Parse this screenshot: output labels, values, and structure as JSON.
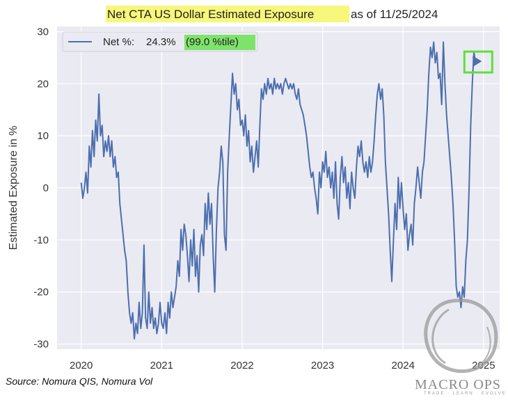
{
  "chart_data": {
    "type": "line",
    "title_highlighted": "Net CTA US Dollar Estimated Exposure",
    "title_rest": "as of 11/25/2024",
    "ylabel": "Estimated Exposure in %",
    "xlabel": "",
    "ylim": [
      -31,
      31
    ],
    "xlim": [
      2019.7,
      2025.2
    ],
    "yticks": [
      30,
      20,
      10,
      0,
      -10,
      -20,
      -30
    ],
    "xticks": [
      2020,
      2021,
      2022,
      2023,
      2024,
      2025
    ],
    "grid": true,
    "legend_position": "top-left",
    "legend": {
      "label": "Net %:",
      "value": "24.3%",
      "percentile": "(99.0 %tile)"
    },
    "series": [
      {
        "name": "Net %",
        "color": "#4c6fae",
        "points": [
          [
            2020.0,
            1
          ],
          [
            2020.02,
            -2
          ],
          [
            2020.04,
            0
          ],
          [
            2020.06,
            3
          ],
          [
            2020.08,
            -1
          ],
          [
            2020.1,
            8
          ],
          [
            2020.12,
            4
          ],
          [
            2020.14,
            11
          ],
          [
            2020.16,
            6
          ],
          [
            2020.18,
            13
          ],
          [
            2020.2,
            9
          ],
          [
            2020.22,
            18
          ],
          [
            2020.24,
            10
          ],
          [
            2020.26,
            12
          ],
          [
            2020.28,
            6
          ],
          [
            2020.3,
            9
          ],
          [
            2020.32,
            7
          ],
          [
            2020.34,
            10
          ],
          [
            2020.36,
            6
          ],
          [
            2020.38,
            9
          ],
          [
            2020.4,
            4
          ],
          [
            2020.42,
            6
          ],
          [
            2020.44,
            2
          ],
          [
            2020.46,
            3
          ],
          [
            2020.48,
            -3
          ],
          [
            2020.5,
            -6
          ],
          [
            2020.52,
            -9
          ],
          [
            2020.54,
            -12
          ],
          [
            2020.56,
            -14
          ],
          [
            2020.58,
            -20
          ],
          [
            2020.6,
            -24
          ],
          [
            2020.62,
            -26
          ],
          [
            2020.64,
            -24
          ],
          [
            2020.66,
            -29
          ],
          [
            2020.68,
            -26
          ],
          [
            2020.7,
            -28
          ],
          [
            2020.72,
            -22
          ],
          [
            2020.74,
            -27
          ],
          [
            2020.76,
            -24
          ],
          [
            2020.78,
            -11
          ],
          [
            2020.8,
            -25
          ],
          [
            2020.82,
            -27
          ],
          [
            2020.84,
            -20
          ],
          [
            2020.86,
            -26
          ],
          [
            2020.88,
            -23
          ],
          [
            2020.9,
            -27
          ],
          [
            2020.92,
            -25
          ],
          [
            2020.94,
            -28
          ],
          [
            2020.96,
            -26
          ],
          [
            2020.98,
            -22
          ],
          [
            2021.0,
            -26
          ],
          [
            2021.02,
            -27
          ],
          [
            2021.04,
            -24
          ],
          [
            2021.06,
            -28
          ],
          [
            2021.08,
            -22
          ],
          [
            2021.1,
            -25
          ],
          [
            2021.12,
            -20
          ],
          [
            2021.14,
            -23
          ],
          [
            2021.16,
            -21
          ],
          [
            2021.18,
            -19
          ],
          [
            2021.2,
            -14
          ],
          [
            2021.22,
            -17
          ],
          [
            2021.24,
            -8
          ],
          [
            2021.26,
            -12
          ],
          [
            2021.28,
            -7
          ],
          [
            2021.3,
            -9
          ],
          [
            2021.32,
            -13
          ],
          [
            2021.34,
            -18
          ],
          [
            2021.36,
            -10
          ],
          [
            2021.38,
            -15
          ],
          [
            2021.4,
            -8
          ],
          [
            2021.42,
            -17
          ],
          [
            2021.44,
            -13
          ],
          [
            2021.46,
            -20
          ],
          [
            2021.48,
            -11
          ],
          [
            2021.5,
            -9
          ],
          [
            2021.52,
            -13
          ],
          [
            2021.54,
            -3
          ],
          [
            2021.56,
            -8
          ],
          [
            2021.58,
            -1
          ],
          [
            2021.6,
            -7
          ],
          [
            2021.62,
            -3
          ],
          [
            2021.64,
            -13
          ],
          [
            2021.66,
            -20
          ],
          [
            2021.68,
            -8
          ],
          [
            2021.7,
            0
          ],
          [
            2021.72,
            3
          ],
          [
            2021.74,
            8
          ],
          [
            2021.76,
            5
          ],
          [
            2021.78,
            -9
          ],
          [
            2021.8,
            -12
          ],
          [
            2021.82,
            3
          ],
          [
            2021.84,
            10
          ],
          [
            2021.86,
            16
          ],
          [
            2021.88,
            22
          ],
          [
            2021.9,
            18
          ],
          [
            2021.92,
            20
          ],
          [
            2021.94,
            15
          ],
          [
            2021.96,
            17
          ],
          [
            2021.98,
            12
          ],
          [
            2022.0,
            13
          ],
          [
            2022.02,
            10
          ],
          [
            2022.04,
            14
          ],
          [
            2022.06,
            8
          ],
          [
            2022.08,
            11
          ],
          [
            2022.1,
            5
          ],
          [
            2022.12,
            8
          ],
          [
            2022.14,
            3
          ],
          [
            2022.16,
            6
          ],
          [
            2022.18,
            9
          ],
          [
            2022.2,
            4
          ],
          [
            2022.22,
            12
          ],
          [
            2022.24,
            19
          ],
          [
            2022.26,
            17
          ],
          [
            2022.28,
            20
          ],
          [
            2022.3,
            18
          ],
          [
            2022.32,
            21
          ],
          [
            2022.34,
            19
          ],
          [
            2022.36,
            20
          ],
          [
            2022.38,
            18
          ],
          [
            2022.4,
            21
          ],
          [
            2022.42,
            19
          ],
          [
            2022.44,
            20
          ],
          [
            2022.46,
            19
          ],
          [
            2022.48,
            20
          ],
          [
            2022.5,
            18
          ],
          [
            2022.52,
            20
          ],
          [
            2022.54,
            21
          ],
          [
            2022.56,
            20
          ],
          [
            2022.58,
            19
          ],
          [
            2022.6,
            20
          ],
          [
            2022.62,
            19
          ],
          [
            2022.64,
            20
          ],
          [
            2022.66,
            18
          ],
          [
            2022.68,
            17
          ],
          [
            2022.7,
            19
          ],
          [
            2022.72,
            16
          ],
          [
            2022.74,
            15
          ],
          [
            2022.76,
            14
          ],
          [
            2022.78,
            12
          ],
          [
            2022.8,
            10
          ],
          [
            2022.82,
            7
          ],
          [
            2022.84,
            4
          ],
          [
            2022.86,
            2
          ],
          [
            2022.88,
            3
          ],
          [
            2022.9,
            0
          ],
          [
            2022.92,
            -2
          ],
          [
            2022.94,
            -5
          ],
          [
            2022.96,
            3
          ],
          [
            2022.98,
            0
          ],
          [
            2023.0,
            5
          ],
          [
            2023.02,
            3
          ],
          [
            2023.04,
            7
          ],
          [
            2023.06,
            2
          ],
          [
            2023.08,
            4
          ],
          [
            2023.1,
            0
          ],
          [
            2023.12,
            3
          ],
          [
            2023.14,
            -2
          ],
          [
            2023.16,
            5
          ],
          [
            2023.18,
            -3
          ],
          [
            2023.2,
            -6
          ],
          [
            2023.22,
            2
          ],
          [
            2023.24,
            6
          ],
          [
            2023.26,
            1
          ],
          [
            2023.28,
            4
          ],
          [
            2023.3,
            -2
          ],
          [
            2023.32,
            1
          ],
          [
            2023.34,
            -4
          ],
          [
            2023.36,
            3
          ],
          [
            2023.38,
            0
          ],
          [
            2023.4,
            -2
          ],
          [
            2023.42,
            4
          ],
          [
            2023.44,
            8
          ],
          [
            2023.46,
            6
          ],
          [
            2023.48,
            9
          ],
          [
            2023.5,
            5
          ],
          [
            2023.52,
            3
          ],
          [
            2023.54,
            5
          ],
          [
            2023.56,
            2
          ],
          [
            2023.58,
            6
          ],
          [
            2023.6,
            3
          ],
          [
            2023.62,
            5
          ],
          [
            2023.64,
            9
          ],
          [
            2023.66,
            14
          ],
          [
            2023.68,
            18
          ],
          [
            2023.7,
            20
          ],
          [
            2023.72,
            17
          ],
          [
            2023.74,
            19
          ],
          [
            2023.76,
            14
          ],
          [
            2023.78,
            5
          ],
          [
            2023.8,
            0
          ],
          [
            2023.82,
            -5
          ],
          [
            2023.84,
            -12
          ],
          [
            2023.86,
            -18
          ],
          [
            2023.88,
            -10
          ],
          [
            2023.9,
            -3
          ],
          [
            2023.92,
            -8
          ],
          [
            2023.94,
            2
          ],
          [
            2023.96,
            -4
          ],
          [
            2023.98,
            1
          ],
          [
            2024.0,
            -4
          ],
          [
            2024.02,
            -8
          ],
          [
            2024.04,
            -5
          ],
          [
            2024.06,
            -12
          ],
          [
            2024.08,
            -9
          ],
          [
            2024.1,
            -7
          ],
          [
            2024.12,
            -11
          ],
          [
            2024.14,
            -3
          ],
          [
            2024.16,
            0
          ],
          [
            2024.18,
            4
          ],
          [
            2024.2,
            1
          ],
          [
            2024.22,
            -2
          ],
          [
            2024.24,
            3
          ],
          [
            2024.26,
            5
          ],
          [
            2024.28,
            10
          ],
          [
            2024.3,
            15
          ],
          [
            2024.32,
            22
          ],
          [
            2024.34,
            27
          ],
          [
            2024.36,
            25
          ],
          [
            2024.38,
            28
          ],
          [
            2024.4,
            24
          ],
          [
            2024.42,
            26
          ],
          [
            2024.44,
            21
          ],
          [
            2024.46,
            22
          ],
          [
            2024.48,
            16
          ],
          [
            2024.5,
            28
          ],
          [
            2024.52,
            20
          ],
          [
            2024.54,
            14
          ],
          [
            2024.56,
            10
          ],
          [
            2024.58,
            6
          ],
          [
            2024.6,
            2
          ],
          [
            2024.62,
            -3
          ],
          [
            2024.64,
            -10
          ],
          [
            2024.66,
            -19
          ],
          [
            2024.68,
            -21
          ],
          [
            2024.7,
            -20
          ],
          [
            2024.72,
            -23
          ],
          [
            2024.74,
            -19
          ],
          [
            2024.76,
            -21
          ],
          [
            2024.78,
            -14
          ],
          [
            2024.8,
            -10
          ],
          [
            2024.82,
            0
          ],
          [
            2024.84,
            12
          ],
          [
            2024.86,
            20
          ],
          [
            2024.88,
            26
          ],
          [
            2024.9,
            24.3
          ]
        ]
      }
    ],
    "last_marker": {
      "x": 2024.9,
      "y": 24.3
    }
  },
  "footer": {
    "source": "Source: Nomura QIS, Nomura Vol",
    "brand": "MACRO OPS",
    "tagline": "TRADE · LEARN · EVOLVE"
  },
  "colors": {
    "line": "#4c6fae",
    "title_highlight": "#f6f77b",
    "legend_highlight": "#7ee36b",
    "marker_box": "#5fde3c",
    "plot_bg": "#eaeaf2",
    "grid": "#ffffff"
  }
}
